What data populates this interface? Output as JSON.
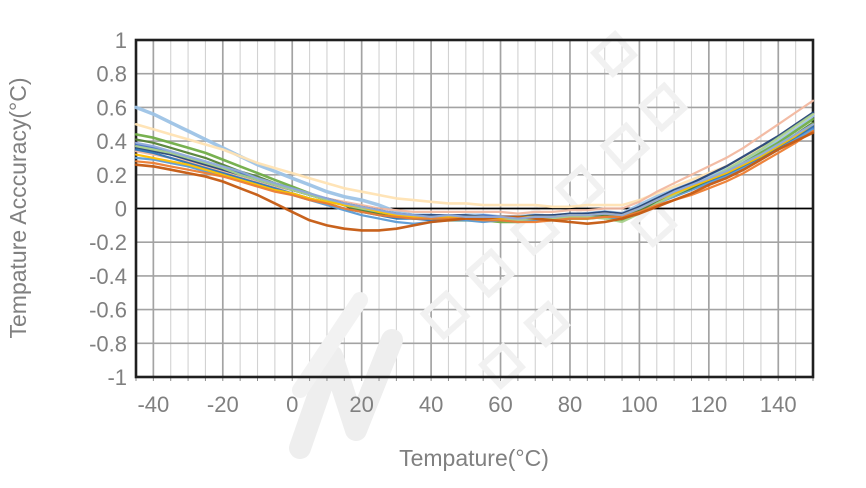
{
  "watermark": {
    "type": "diagonal-logo-glyphs",
    "color": "#efefef"
  },
  "style": {
    "plot_border_color": "#1f1f1f",
    "zero_line_color": "#000000",
    "grid_major_color": "#a3a3a3",
    "grid_minor_color": "#d2d2d2",
    "tick_color": "#8c8c8c",
    "label_color": "#808080",
    "background": "#ffffff"
  },
  "chart_data": {
    "type": "line",
    "title": "",
    "xlabel": "Tempature(°C)",
    "ylabel": "Tempature Acccuracy(°C)",
    "xlim": [
      -45,
      150
    ],
    "ylim": [
      -1,
      1
    ],
    "x_major_step": 20,
    "x_minor_step": 5,
    "y_major_step": 0.2,
    "grid": true,
    "legend": "none",
    "x_ticks": [
      -40,
      -20,
      0,
      20,
      40,
      60,
      80,
      100,
      120,
      140
    ],
    "x_tick_labels": [
      "-40",
      "-20",
      "0",
      "20",
      "40",
      "60",
      "80",
      "100",
      "120",
      "140"
    ],
    "y_ticks": [
      1,
      0.8,
      0.6,
      0.4,
      0.2,
      0,
      -0.2,
      -0.4,
      -0.6,
      -0.8,
      -1
    ],
    "y_tick_labels": [
      "1",
      "0.8",
      "0.6",
      "0.4",
      "0.2",
      "0",
      "-0.2",
      "-0.4",
      "-0.6",
      "-0.8",
      "-1"
    ],
    "x": [
      -45,
      -40,
      -35,
      -30,
      -25,
      -20,
      -15,
      -10,
      -5,
      0,
      5,
      10,
      15,
      20,
      25,
      30,
      35,
      40,
      45,
      50,
      55,
      60,
      65,
      70,
      75,
      80,
      85,
      90,
      95,
      100,
      105,
      110,
      115,
      120,
      125,
      130,
      135,
      140,
      145,
      150
    ],
    "series": [
      {
        "name": "line-01",
        "color": "#9DC3E6",
        "width": 3.5,
        "values": [
          0.6,
          0.56,
          0.51,
          0.46,
          0.41,
          0.36,
          0.31,
          0.26,
          0.22,
          0.18,
          0.14,
          0.1,
          0.07,
          0.05,
          0.02,
          -0.02,
          -0.04,
          -0.04,
          -0.05,
          -0.04,
          -0.04,
          -0.05,
          -0.05,
          -0.04,
          -0.05,
          -0.04,
          -0.03,
          -0.02,
          -0.03,
          0.02,
          0.07,
          0.11,
          0.15,
          0.19,
          0.24,
          0.29,
          0.35,
          0.41,
          0.48,
          0.55
        ]
      },
      {
        "name": "line-02",
        "color": "#FFE3B3",
        "width": 2.6,
        "values": [
          0.5,
          0.47,
          0.44,
          0.41,
          0.38,
          0.35,
          0.31,
          0.27,
          0.24,
          0.21,
          0.18,
          0.15,
          0.12,
          0.1,
          0.08,
          0.06,
          0.05,
          0.04,
          0.03,
          0.03,
          0.02,
          0.02,
          0.02,
          0.02,
          0.01,
          0.01,
          0.02,
          0.02,
          0.02,
          0.05,
          0.09,
          0.13,
          0.17,
          0.21,
          0.25,
          0.3,
          0.36,
          0.42,
          0.49,
          0.56
        ]
      },
      {
        "name": "line-03",
        "color": "#F2B8A0",
        "width": 2.2,
        "values": [
          0.34,
          0.32,
          0.3,
          0.28,
          0.25,
          0.22,
          0.19,
          0.16,
          0.13,
          0.11,
          0.08,
          0.06,
          0.04,
          0.02,
          0.0,
          -0.01,
          -0.02,
          -0.02,
          -0.02,
          -0.02,
          -0.02,
          -0.02,
          -0.03,
          -0.02,
          -0.02,
          -0.01,
          -0.01,
          0.0,
          0.0,
          0.04,
          0.1,
          0.15,
          0.2,
          0.25,
          0.3,
          0.36,
          0.43,
          0.5,
          0.57,
          0.64
        ]
      },
      {
        "name": "line-04",
        "color": "#70AD47",
        "width": 2.6,
        "values": [
          0.44,
          0.42,
          0.39,
          0.36,
          0.33,
          0.29,
          0.25,
          0.21,
          0.17,
          0.13,
          0.09,
          0.05,
          0.02,
          -0.01,
          -0.03,
          -0.05,
          -0.06,
          -0.06,
          -0.07,
          -0.07,
          -0.07,
          -0.08,
          -0.08,
          -0.07,
          -0.07,
          -0.06,
          -0.06,
          -0.05,
          -0.07,
          -0.02,
          0.04,
          0.09,
          0.13,
          0.17,
          0.22,
          0.27,
          0.33,
          0.39,
          0.46,
          0.53
        ]
      },
      {
        "name": "line-05",
        "color": "#4472C4",
        "width": 2.2,
        "values": [
          0.38,
          0.36,
          0.33,
          0.3,
          0.27,
          0.24,
          0.21,
          0.17,
          0.14,
          0.11,
          0.08,
          0.05,
          0.02,
          0.0,
          -0.03,
          -0.04,
          -0.05,
          -0.04,
          -0.05,
          -0.05,
          -0.04,
          -0.05,
          -0.05,
          -0.05,
          -0.04,
          -0.04,
          -0.03,
          -0.03,
          -0.04,
          0.0,
          0.05,
          0.09,
          0.13,
          0.17,
          0.21,
          0.26,
          0.31,
          0.36,
          0.42,
          0.48
        ]
      },
      {
        "name": "line-06",
        "color": "#264478",
        "width": 2.2,
        "values": [
          0.36,
          0.34,
          0.32,
          0.29,
          0.26,
          0.23,
          0.2,
          0.17,
          0.14,
          0.11,
          0.08,
          0.06,
          0.03,
          0.01,
          -0.01,
          -0.03,
          -0.04,
          -0.04,
          -0.04,
          -0.04,
          -0.05,
          -0.05,
          -0.05,
          -0.04,
          -0.04,
          -0.03,
          -0.03,
          -0.02,
          -0.03,
          0.01,
          0.06,
          0.11,
          0.15,
          0.2,
          0.25,
          0.31,
          0.37,
          0.43,
          0.5,
          0.57
        ]
      },
      {
        "name": "line-07",
        "color": "#2E75B6",
        "width": 2.2,
        "values": [
          0.35,
          0.33,
          0.3,
          0.27,
          0.24,
          0.21,
          0.18,
          0.15,
          0.12,
          0.09,
          0.06,
          0.03,
          0.0,
          -0.02,
          -0.04,
          -0.06,
          -0.06,
          -0.07,
          -0.06,
          -0.07,
          -0.06,
          -0.07,
          -0.07,
          -0.06,
          -0.06,
          -0.05,
          -0.05,
          -0.04,
          -0.05,
          -0.01,
          0.04,
          0.08,
          0.12,
          0.16,
          0.2,
          0.25,
          0.3,
          0.36,
          0.42,
          0.49
        ]
      },
      {
        "name": "line-08",
        "color": "#5B9BD5",
        "width": 2.2,
        "values": [
          0.3,
          0.29,
          0.27,
          0.25,
          0.22,
          0.2,
          0.17,
          0.14,
          0.11,
          0.08,
          0.05,
          0.02,
          -0.01,
          -0.04,
          -0.06,
          -0.08,
          -0.09,
          -0.08,
          -0.07,
          -0.07,
          -0.08,
          -0.07,
          -0.08,
          -0.07,
          -0.07,
          -0.06,
          -0.05,
          -0.05,
          -0.06,
          -0.02,
          0.03,
          0.07,
          0.11,
          0.15,
          0.19,
          0.24,
          0.29,
          0.35,
          0.41,
          0.47
        ]
      },
      {
        "name": "line-09",
        "color": "#548235",
        "width": 2.2,
        "values": [
          0.41,
          0.39,
          0.36,
          0.33,
          0.3,
          0.26,
          0.22,
          0.19,
          0.15,
          0.12,
          0.08,
          0.05,
          0.02,
          -0.01,
          -0.03,
          -0.05,
          -0.05,
          -0.06,
          -0.06,
          -0.06,
          -0.06,
          -0.07,
          -0.06,
          -0.06,
          -0.05,
          -0.05,
          -0.04,
          -0.04,
          -0.05,
          -0.01,
          0.04,
          0.08,
          0.12,
          0.17,
          0.21,
          0.26,
          0.31,
          0.37,
          0.44,
          0.51
        ]
      },
      {
        "name": "line-10",
        "color": "#A9D18E",
        "width": 2.2,
        "values": [
          0.37,
          0.35,
          0.33,
          0.3,
          0.27,
          0.24,
          0.2,
          0.17,
          0.14,
          0.11,
          0.08,
          0.05,
          0.02,
          0.0,
          -0.02,
          -0.04,
          -0.05,
          -0.06,
          -0.05,
          -0.06,
          -0.06,
          -0.06,
          -0.07,
          -0.06,
          -0.06,
          -0.05,
          -0.05,
          -0.06,
          -0.08,
          -0.03,
          0.03,
          0.08,
          0.13,
          0.18,
          0.23,
          0.29,
          0.35,
          0.42,
          0.49,
          0.56
        ]
      },
      {
        "name": "line-11",
        "color": "#FFC000",
        "width": 2.2,
        "values": [
          0.32,
          0.3,
          0.28,
          0.26,
          0.23,
          0.2,
          0.17,
          0.14,
          0.11,
          0.09,
          0.06,
          0.04,
          0.02,
          0.01,
          -0.02,
          -0.04,
          -0.05,
          -0.05,
          -0.05,
          -0.05,
          -0.05,
          -0.06,
          -0.05,
          -0.05,
          -0.05,
          -0.04,
          -0.04,
          -0.03,
          -0.04,
          0.0,
          0.05,
          0.09,
          0.13,
          0.17,
          0.21,
          0.26,
          0.31,
          0.37,
          0.43,
          0.5
        ]
      },
      {
        "name": "line-12",
        "color": "#ED7D31",
        "width": 2.2,
        "values": [
          0.28,
          0.27,
          0.25,
          0.23,
          0.21,
          0.19,
          0.16,
          0.13,
          0.1,
          0.08,
          0.05,
          0.03,
          0.0,
          -0.02,
          -0.04,
          -0.05,
          -0.06,
          -0.06,
          -0.06,
          -0.06,
          -0.07,
          -0.07,
          -0.08,
          -0.08,
          -0.07,
          -0.06,
          -0.06,
          -0.05,
          -0.05,
          -0.02,
          0.02,
          0.05,
          0.08,
          0.12,
          0.16,
          0.21,
          0.27,
          0.33,
          0.39,
          0.46
        ]
      },
      {
        "name": "line-13",
        "color": "#C55A11",
        "width": 2.6,
        "values": [
          0.26,
          0.25,
          0.23,
          0.21,
          0.19,
          0.16,
          0.12,
          0.08,
          0.03,
          -0.02,
          -0.07,
          -0.1,
          -0.12,
          -0.13,
          -0.13,
          -0.12,
          -0.1,
          -0.08,
          -0.07,
          -0.06,
          -0.06,
          -0.05,
          -0.05,
          -0.06,
          -0.07,
          -0.08,
          -0.09,
          -0.08,
          -0.06,
          -0.03,
          0.01,
          0.05,
          0.09,
          0.14,
          0.18,
          0.23,
          0.29,
          0.35,
          0.4,
          0.45
        ]
      },
      {
        "name": "line-14",
        "color": "#8FAADC",
        "width": 2.2,
        "values": [
          0.39,
          0.37,
          0.34,
          0.31,
          0.28,
          0.25,
          0.22,
          0.18,
          0.15,
          0.12,
          0.09,
          0.06,
          0.03,
          0.01,
          -0.01,
          -0.03,
          -0.04,
          -0.05,
          -0.04,
          -0.05,
          -0.05,
          -0.05,
          -0.06,
          -0.05,
          -0.05,
          -0.04,
          -0.04,
          -0.03,
          -0.04,
          0.0,
          0.05,
          0.1,
          0.14,
          0.18,
          0.22,
          0.27,
          0.32,
          0.38,
          0.44,
          0.5
        ]
      }
    ]
  }
}
